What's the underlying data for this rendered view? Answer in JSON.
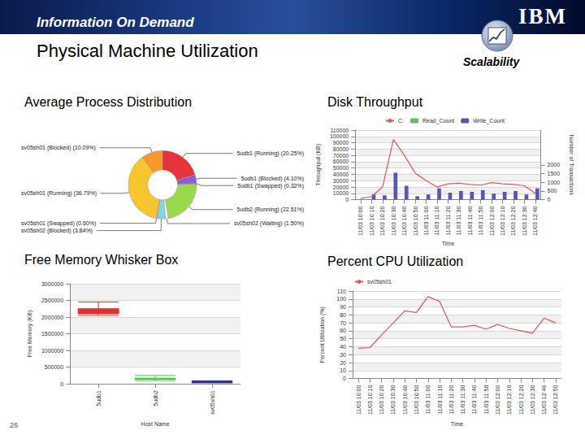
{
  "header": {
    "banner": "Information On Demand",
    "logo": "IBM",
    "section": "Scalability",
    "page_number": "26"
  },
  "title": "Physical Machine Utilization",
  "chart_data": [
    {
      "type": "pie",
      "title": "Average Process Distribution",
      "categories": [
        "5udb1 (Running) (20.25%)",
        "5udb1 (Blocked) (4.10%)",
        "5udb1 (Swapped) (0.32%)",
        "5udb2 (Running) (22.51%)",
        "sv05sh02 (Waiting) (1.50%)",
        "sv05sh02 (Blocked) (3.84%)",
        "sv05sh01 (Swapped) (0.60%)",
        "sv05sh01 (Running) (36.79%)",
        "sv05sh01 (Blocked) (10.09%)"
      ],
      "values": [
        20.25,
        4.1,
        0.32,
        22.51,
        1.5,
        3.84,
        0.6,
        36.79,
        10.09
      ],
      "colors": [
        "#e8323c",
        "#8a5cd6",
        "#3a63d8",
        "#9ad94a",
        "#f4f4f4",
        "#7fd8e8",
        "#f0a0c8",
        "#f7c52c",
        "#f59a2a"
      ]
    },
    {
      "type": "bar",
      "title": "Disk Throughput",
      "categories": [
        "11/03 10:00",
        "11/03 10:10",
        "11/03 10:20",
        "11/03 10:30",
        "11/03 10:40",
        "11/03 10:50",
        "11/03 11:00",
        "11/03 11:10",
        "11/03 11:20",
        "11/03 11:30",
        "11/03 11:40",
        "11/03 11:50",
        "11/03 12:00",
        "11/03 12:10",
        "11/03 12:20",
        "11/03 12:30",
        "11/03 12:40"
      ],
      "series": [
        {
          "name": "C:",
          "type": "line",
          "color": "#e05555",
          "values": [
            2000,
            5000,
            20000,
            95000,
            70000,
            42000,
            30000,
            20000,
            25000,
            26000,
            24000,
            23000,
            27000,
            25000,
            24000,
            22000,
            10000
          ]
        },
        {
          "name": "Read_Count",
          "type": "bar",
          "color": "#66bb66",
          "axis": "y2",
          "values": [
            0,
            0,
            0,
            0,
            0,
            0,
            0,
            0,
            0,
            0,
            0,
            0,
            0,
            0,
            0,
            0,
            0
          ]
        },
        {
          "name": "Write_Count",
          "type": "bar",
          "color": "#5555bb",
          "axis": "y2",
          "values": [
            0,
            300,
            250,
            1550,
            800,
            200,
            300,
            650,
            400,
            500,
            450,
            550,
            350,
            450,
            500,
            300,
            650
          ]
        }
      ],
      "xlabel": "Time",
      "ylabel": "Throughput (KB)",
      "y2label": "Number of Transactions",
      "ylim": [
        0,
        110000
      ],
      "yticks": [
        0,
        10000,
        20000,
        30000,
        40000,
        50000,
        60000,
        70000,
        80000,
        90000,
        100000,
        110000
      ],
      "y2lim": [
        0,
        4000
      ],
      "y2ticks": [
        0,
        500,
        1000,
        1500,
        2000
      ],
      "grid": true,
      "legend": "top"
    },
    {
      "type": "boxplot",
      "title": "Free Memory Whisker Box",
      "categories": [
        "5udb1",
        "5udb2",
        "sv05sh01"
      ],
      "values": [
        [
          2050000,
          2100000,
          2150000,
          2250000,
          2450000
        ],
        [
          100000,
          140000,
          150000,
          170000,
          250000
        ],
        [
          30000,
          40000,
          50000,
          60000,
          90000
        ]
      ],
      "colors": [
        "#e03030",
        "#44cc44",
        "#2a2a8a"
      ],
      "xlabel": "Host Name",
      "ylabel": "Free Memory (KB)",
      "ylim": [
        0,
        3000000
      ],
      "yticks": [
        0,
        500000,
        1000000,
        1500000,
        2000000,
        2500000,
        3000000
      ],
      "grid": true
    },
    {
      "type": "line",
      "title": "Percent CPU Utilization",
      "categories": [
        "11/03 10:00",
        "11/03 10:10",
        "11/03 10:20",
        "11/03 10:30",
        "11/03 10:40",
        "11/03 10:50",
        "11/03 11:00",
        "11/03 11:10",
        "11/03 11:20",
        "11/03 11:30",
        "11/03 11:40",
        "11/03 11:50",
        "11/03 12:00",
        "11/03 12:10",
        "11/03 12:20",
        "11/03 12:30",
        "11/03 12:40",
        "11/03 12:50"
      ],
      "series": [
        {
          "name": "sv05sh01",
          "color": "#e05555",
          "values": [
            38,
            39,
            55,
            70,
            85,
            83,
            103,
            97,
            65,
            65,
            67,
            62,
            68,
            63,
            60,
            57,
            76,
            70
          ]
        }
      ],
      "xlabel": "Time",
      "ylabel": "Percent Utilization (%)",
      "ylim": [
        0,
        110
      ],
      "yticks": [
        0,
        10,
        20,
        30,
        40,
        50,
        60,
        70,
        80,
        90,
        100,
        110
      ],
      "grid": true,
      "legend": "top-left"
    }
  ]
}
